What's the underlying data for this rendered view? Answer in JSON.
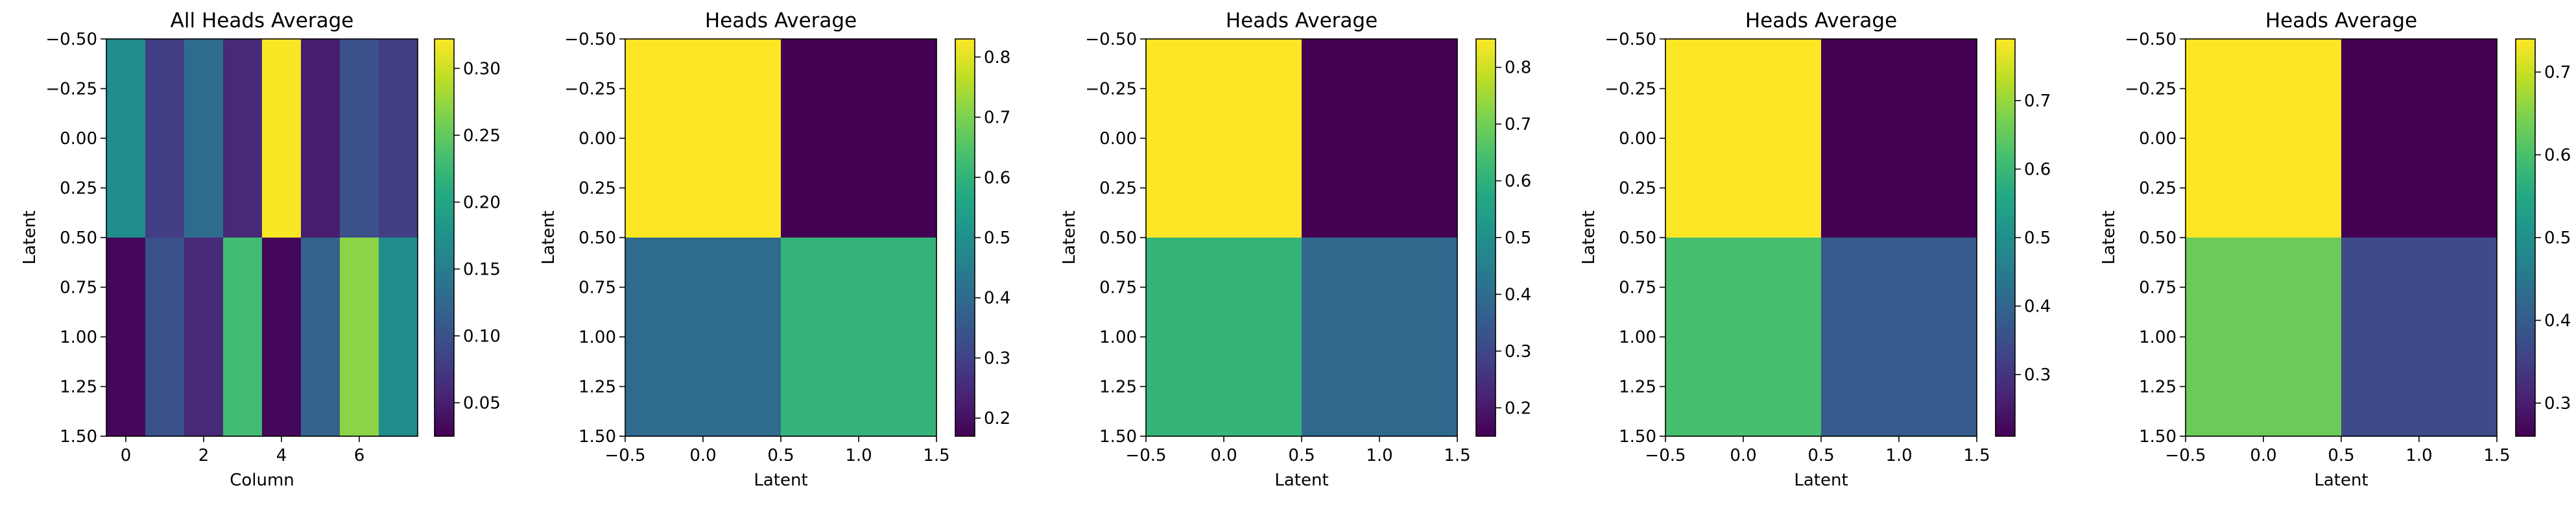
{
  "chart_data": [
    {
      "type": "heatmap",
      "title": "All Heads Average",
      "xlabel": "Column",
      "ylabel": "Latent",
      "extent": [
        -0.5,
        7.5,
        1.5,
        -0.5
      ],
      "xticks": [
        0,
        2,
        4,
        6
      ],
      "xtick_labels": [
        "0",
        "2",
        "4",
        "6"
      ],
      "yticks": [
        -0.5,
        -0.25,
        0.0,
        0.25,
        0.5,
        0.75,
        1.0,
        1.25,
        1.5
      ],
      "ytick_labels": [
        "−0.50",
        "−0.25",
        "0.00",
        "0.25",
        "0.50",
        "0.75",
        "1.00",
        "1.25",
        "1.50"
      ],
      "values": [
        [
          0.17,
          0.08,
          0.13,
          0.06,
          0.32,
          0.05,
          0.1,
          0.08
        ],
        [
          0.03,
          0.1,
          0.06,
          0.23,
          0.03,
          0.12,
          0.27,
          0.17
        ]
      ],
      "colormap": "viridis",
      "vmin": 0.025,
      "vmax": 0.322,
      "colorbar_ticks": [
        0.05,
        0.1,
        0.15,
        0.2,
        0.25,
        0.3
      ],
      "colorbar_tick_labels": [
        "0.05",
        "0.10",
        "0.15",
        "0.20",
        "0.25",
        "0.30"
      ]
    },
    {
      "type": "heatmap",
      "title": "Heads Average",
      "xlabel": "Latent",
      "ylabel": "Latent",
      "extent": [
        -0.5,
        1.5,
        1.5,
        -0.5
      ],
      "xticks": [
        -0.5,
        0.0,
        0.5,
        1.0,
        1.5
      ],
      "xtick_labels": [
        "−0.5",
        "0.0",
        "0.5",
        "1.0",
        "1.5"
      ],
      "yticks": [
        -0.5,
        -0.25,
        0.0,
        0.25,
        0.5,
        0.75,
        1.0,
        1.25,
        1.5
      ],
      "ytick_labels": [
        "−0.50",
        "−0.25",
        "0.00",
        "0.25",
        "0.50",
        "0.75",
        "1.00",
        "1.25",
        "1.50"
      ],
      "values": [
        [
          0.83,
          0.17
        ],
        [
          0.4,
          0.6
        ]
      ],
      "colormap": "viridis",
      "vmin": 0.17,
      "vmax": 0.83,
      "colorbar_ticks": [
        0.2,
        0.3,
        0.4,
        0.5,
        0.6,
        0.7,
        0.8
      ],
      "colorbar_tick_labels": [
        "0.2",
        "0.3",
        "0.4",
        "0.5",
        "0.6",
        "0.7",
        "0.8"
      ]
    },
    {
      "type": "heatmap",
      "title": "Heads Average",
      "xlabel": "Latent",
      "ylabel": "Latent",
      "extent": [
        -0.5,
        1.5,
        1.5,
        -0.5
      ],
      "xticks": [
        -0.5,
        0.0,
        0.5,
        1.0,
        1.5
      ],
      "xtick_labels": [
        "−0.5",
        "0.0",
        "0.5",
        "1.0",
        "1.5"
      ],
      "yticks": [
        -0.5,
        -0.25,
        0.0,
        0.25,
        0.5,
        0.75,
        1.0,
        1.25,
        1.5
      ],
      "ytick_labels": [
        "−0.50",
        "−0.25",
        "0.00",
        "0.25",
        "0.50",
        "0.75",
        "1.00",
        "1.25",
        "1.50"
      ],
      "values": [
        [
          0.85,
          0.15
        ],
        [
          0.61,
          0.39
        ]
      ],
      "colormap": "viridis",
      "vmin": 0.15,
      "vmax": 0.85,
      "colorbar_ticks": [
        0.2,
        0.3,
        0.4,
        0.5,
        0.6,
        0.7,
        0.8
      ],
      "colorbar_tick_labels": [
        "0.2",
        "0.3",
        "0.4",
        "0.5",
        "0.6",
        "0.7",
        "0.8"
      ]
    },
    {
      "type": "heatmap",
      "title": "Heads Average",
      "xlabel": "Latent",
      "ylabel": "Latent",
      "extent": [
        -0.5,
        1.5,
        1.5,
        -0.5
      ],
      "xticks": [
        -0.5,
        0.0,
        0.5,
        1.0,
        1.5
      ],
      "xtick_labels": [
        "−0.5",
        "0.0",
        "0.5",
        "1.0",
        "1.5"
      ],
      "yticks": [
        -0.5,
        -0.25,
        0.0,
        0.25,
        0.5,
        0.75,
        1.0,
        1.25,
        1.5
      ],
      "ytick_labels": [
        "−0.50",
        "−0.25",
        "0.00",
        "0.25",
        "0.50",
        "0.75",
        "1.00",
        "1.25",
        "1.50"
      ],
      "values": [
        [
          0.79,
          0.21
        ],
        [
          0.62,
          0.38
        ]
      ],
      "colormap": "viridis",
      "vmin": 0.21,
      "vmax": 0.79,
      "colorbar_ticks": [
        0.3,
        0.4,
        0.5,
        0.6,
        0.7
      ],
      "colorbar_tick_labels": [
        "0.3",
        "0.4",
        "0.5",
        "0.6",
        "0.7"
      ]
    },
    {
      "type": "heatmap",
      "title": "Heads Average",
      "xlabel": "Latent",
      "ylabel": "Latent",
      "extent": [
        -0.5,
        1.5,
        1.5,
        -0.5
      ],
      "xticks": [
        -0.5,
        0.0,
        0.5,
        1.0,
        1.5
      ],
      "xtick_labels": [
        "−0.5",
        "0.0",
        "0.5",
        "1.0",
        "1.5"
      ],
      "yticks": [
        -0.5,
        -0.25,
        0.0,
        0.25,
        0.5,
        0.75,
        1.0,
        1.25,
        1.5
      ],
      "ytick_labels": [
        "−0.50",
        "−0.25",
        "0.00",
        "0.25",
        "0.50",
        "0.75",
        "1.00",
        "1.25",
        "1.50"
      ],
      "values": [
        [
          0.74,
          0.26
        ],
        [
          0.63,
          0.37
        ]
      ],
      "colormap": "viridis",
      "vmin": 0.26,
      "vmax": 0.74,
      "colorbar_ticks": [
        0.3,
        0.4,
        0.5,
        0.6,
        0.7
      ],
      "colorbar_tick_labels": [
        "0.3",
        "0.4",
        "0.5",
        "0.6",
        "0.7"
      ]
    }
  ]
}
